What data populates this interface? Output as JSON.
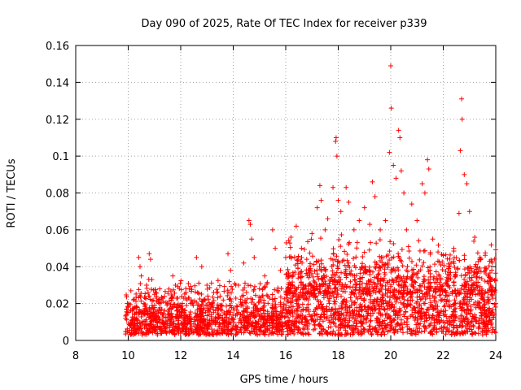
{
  "chart_data": {
    "type": "scatter",
    "title": "Day 090 of 2025, Rate Of TEC Index for receiver p339",
    "xlabel": "GPS time / hours",
    "ylabel": "ROTI / TECUs",
    "xlim": [
      8,
      24
    ],
    "ylim": [
      0,
      0.16
    ],
    "x_ticks": [
      "8",
      "10",
      "12",
      "14",
      "16",
      "18",
      "20",
      "22",
      "24"
    ],
    "y_ticks": [
      "0",
      "0.02",
      "0.04",
      "0.06",
      "0.08",
      "0.1",
      "0.12",
      "0.14",
      "0.16"
    ],
    "x_tick_values": [
      8,
      10,
      12,
      14,
      16,
      18,
      20,
      22,
      24
    ],
    "y_tick_values": [
      0,
      0.02,
      0.04,
      0.06,
      0.08,
      0.1,
      0.12,
      0.14,
      0.16
    ],
    "grid": true,
    "marker": "plus",
    "color": "#ff0000",
    "series": [
      {
        "name": "ROTI",
        "description_of_density": "dense cloud of points between 0.002 and 0.03 from ~9.9 h to 24 h",
        "points": [
          [
            9.9,
            0.012
          ],
          [
            10.0,
            0.018
          ],
          [
            10.1,
            0.009
          ],
          [
            10.2,
            0.022
          ],
          [
            10.3,
            0.015
          ],
          [
            10.4,
            0.045
          ],
          [
            10.45,
            0.04
          ],
          [
            10.5,
            0.035
          ],
          [
            10.6,
            0.02
          ],
          [
            10.7,
            0.03
          ],
          [
            10.8,
            0.047
          ],
          [
            10.85,
            0.044
          ],
          [
            10.9,
            0.033
          ],
          [
            11.0,
            0.025
          ],
          [
            11.1,
            0.016
          ],
          [
            11.2,
            0.028
          ],
          [
            11.3,
            0.014
          ],
          [
            11.5,
            0.02
          ],
          [
            11.7,
            0.035
          ],
          [
            11.8,
            0.03
          ],
          [
            12.0,
            0.018
          ],
          [
            12.2,
            0.026
          ],
          [
            12.4,
            0.022
          ],
          [
            12.6,
            0.045
          ],
          [
            12.8,
            0.04
          ],
          [
            13.0,
            0.03
          ],
          [
            13.2,
            0.02
          ],
          [
            13.5,
            0.024
          ],
          [
            13.8,
            0.047
          ],
          [
            13.9,
            0.038
          ],
          [
            14.2,
            0.03
          ],
          [
            14.4,
            0.042
          ],
          [
            14.6,
            0.065
          ],
          [
            14.65,
            0.063
          ],
          [
            14.7,
            0.055
          ],
          [
            14.8,
            0.045
          ],
          [
            15.0,
            0.028
          ],
          [
            15.2,
            0.035
          ],
          [
            15.5,
            0.06
          ],
          [
            15.6,
            0.05
          ],
          [
            15.8,
            0.038
          ],
          [
            16.0,
            0.045
          ],
          [
            16.2,
            0.056
          ],
          [
            16.4,
            0.062
          ],
          [
            16.6,
            0.05
          ],
          [
            16.8,
            0.044
          ],
          [
            17.0,
            0.058
          ],
          [
            17.2,
            0.072
          ],
          [
            17.3,
            0.084
          ],
          [
            17.35,
            0.076
          ],
          [
            17.5,
            0.06
          ],
          [
            17.6,
            0.066
          ],
          [
            17.8,
            0.083
          ],
          [
            17.9,
            0.108
          ],
          [
            17.92,
            0.11
          ],
          [
            17.95,
            0.1
          ],
          [
            18.0,
            0.076
          ],
          [
            18.1,
            0.07
          ],
          [
            18.3,
            0.083
          ],
          [
            18.4,
            0.075
          ],
          [
            18.6,
            0.06
          ],
          [
            18.8,
            0.065
          ],
          [
            19.0,
            0.072
          ],
          [
            19.2,
            0.063
          ],
          [
            19.3,
            0.086
          ],
          [
            19.4,
            0.078
          ],
          [
            19.6,
            0.06
          ],
          [
            19.8,
            0.065
          ],
          [
            19.95,
            0.102
          ],
          [
            20.0,
            0.149
          ],
          [
            20.02,
            0.126
          ],
          [
            20.1,
            0.095
          ],
          [
            20.2,
            0.088
          ],
          [
            20.3,
            0.114
          ],
          [
            20.35,
            0.11
          ],
          [
            20.4,
            0.092
          ],
          [
            20.5,
            0.08
          ],
          [
            20.6,
            0.06
          ],
          [
            20.8,
            0.074
          ],
          [
            21.0,
            0.065
          ],
          [
            21.2,
            0.085
          ],
          [
            21.3,
            0.08
          ],
          [
            21.4,
            0.098
          ],
          [
            21.45,
            0.093
          ],
          [
            21.6,
            0.055
          ],
          [
            21.8,
            0.048
          ],
          [
            22.0,
            0.046
          ],
          [
            22.2,
            0.04
          ],
          [
            22.4,
            0.05
          ],
          [
            22.6,
            0.069
          ],
          [
            22.65,
            0.103
          ],
          [
            22.7,
            0.131
          ],
          [
            22.72,
            0.12
          ],
          [
            22.8,
            0.09
          ],
          [
            22.9,
            0.085
          ],
          [
            23.0,
            0.07
          ],
          [
            23.2,
            0.056
          ],
          [
            23.4,
            0.045
          ],
          [
            23.6,
            0.038
          ],
          [
            23.8,
            0.03
          ],
          [
            24.0,
            0.02
          ]
        ]
      }
    ]
  }
}
